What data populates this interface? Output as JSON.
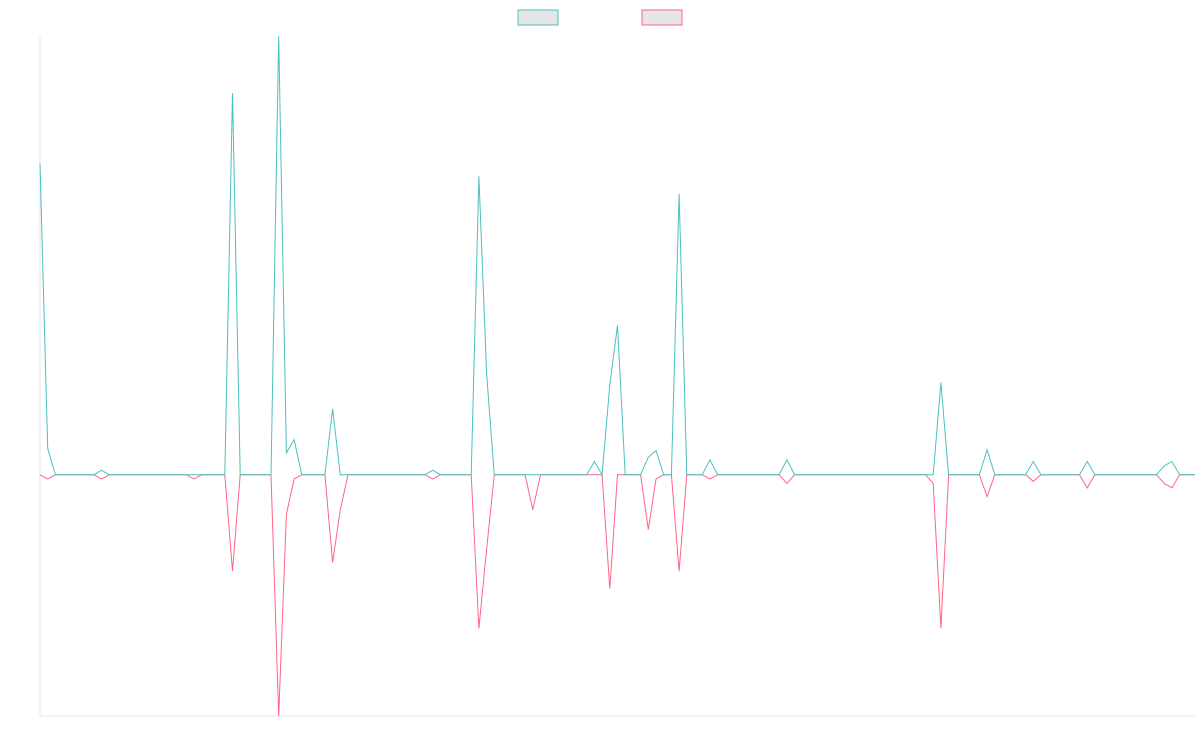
{
  "chart_data": {
    "type": "line",
    "ylim": [
      -55,
      100
    ],
    "legend": "top",
    "series": [
      {
        "color": "#ff6384",
        "values": [
          0,
          -1,
          0,
          0,
          0,
          0,
          0,
          0,
          -1,
          0,
          0,
          0,
          0,
          0,
          0,
          0,
          0,
          0,
          0,
          0,
          -1,
          0,
          0,
          0,
          0,
          -22,
          0,
          0,
          0,
          0,
          0,
          -55,
          -9,
          -1,
          0,
          0,
          0,
          0,
          -20,
          -8,
          0,
          0,
          0,
          0,
          0,
          0,
          0,
          0,
          0,
          0,
          0,
          -1,
          0,
          0,
          0,
          0,
          0,
          -35,
          -17,
          0,
          0,
          0,
          0,
          0,
          -8,
          0,
          0,
          0,
          0,
          0,
          0,
          0,
          0,
          0,
          -26,
          0,
          0,
          0,
          0,
          -12.5,
          -1,
          0,
          0,
          -22,
          0,
          0,
          0,
          -1,
          0,
          0,
          0,
          0,
          0,
          0,
          0,
          0,
          0,
          -2,
          0,
          0,
          0,
          0,
          0,
          0,
          0,
          0,
          0,
          0,
          0,
          0,
          0,
          0,
          0,
          0,
          0,
          0,
          -2,
          -35,
          0,
          0,
          0,
          0,
          0,
          -5,
          0,
          0,
          0,
          0,
          0,
          -1.5,
          0,
          0,
          0,
          0,
          0,
          0,
          -3,
          0,
          0,
          0,
          0,
          0,
          0,
          0,
          0,
          0,
          -2,
          -3,
          0,
          0,
          0
        ]
      },
      {
        "color": "#4bc0c0",
        "values": [
          71,
          6,
          0,
          0,
          0,
          0,
          0,
          0,
          1,
          0,
          0,
          0,
          0,
          0,
          0,
          0,
          0,
          0,
          0,
          0,
          0,
          0,
          0,
          0,
          0,
          87,
          0,
          0,
          0,
          0,
          0,
          100,
          5,
          8,
          0,
          0,
          0,
          0,
          15,
          0,
          0,
          0,
          0,
          0,
          0,
          0,
          0,
          0,
          0,
          0,
          0,
          1,
          0,
          0,
          0,
          0,
          0,
          68,
          23,
          0,
          0,
          0,
          0,
          0,
          0,
          0,
          0,
          0,
          0,
          0,
          0,
          0,
          3,
          0,
          20.5,
          34,
          0,
          0,
          0,
          4,
          5.5,
          0,
          0,
          64,
          0,
          0,
          0,
          3.4,
          0,
          0,
          0,
          0,
          0,
          0,
          0,
          0,
          0,
          3.4,
          0,
          0,
          0,
          0,
          0,
          0,
          0,
          0,
          0,
          0,
          0,
          0,
          0,
          0,
          0,
          0,
          0,
          0,
          0,
          21,
          0,
          0,
          0,
          0,
          0,
          5.7,
          0,
          0,
          0,
          0,
          0,
          3,
          0,
          0,
          0,
          0,
          0,
          0,
          3,
          0,
          0,
          0,
          0,
          0,
          0,
          0,
          0,
          0,
          2,
          3,
          0,
          0,
          0
        ]
      }
    ]
  }
}
